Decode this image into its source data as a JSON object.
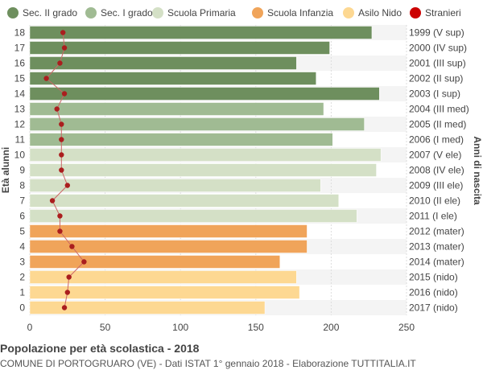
{
  "chart_data": {
    "type": "bar",
    "orientation": "horizontal",
    "ylabel": "Età alunni",
    "ylabel_right": "Anni di nascita",
    "xlim": [
      0,
      250
    ],
    "x_ticks": [
      0,
      50,
      100,
      150,
      200,
      250
    ],
    "grid": true,
    "legend_position": "top",
    "legend": [
      {
        "name": "Sec. II grado",
        "color": "#6e8f5e"
      },
      {
        "name": "Sec. I grado",
        "color": "#a0bb93"
      },
      {
        "name": "Scuola Primaria",
        "color": "#d4e0c6"
      },
      {
        "name": "Scuola Infanzia",
        "color": "#f0a45a"
      },
      {
        "name": "Asilo Nido",
        "color": "#fdd892"
      },
      {
        "name": "Stranieri",
        "color": "#cc0000"
      }
    ],
    "categories": [
      18,
      17,
      16,
      15,
      14,
      13,
      12,
      11,
      10,
      9,
      8,
      7,
      6,
      5,
      4,
      3,
      2,
      1,
      0
    ],
    "birth_years": [
      "1999 (V sup)",
      "2000 (IV sup)",
      "2001 (III sup)",
      "2002 (II sup)",
      "2003 (I sup)",
      "2004 (III med)",
      "2005 (II med)",
      "2006 (I med)",
      "2007 (V ele)",
      "2008 (IV ele)",
      "2009 (III ele)",
      "2010 (II ele)",
      "2011 (I ele)",
      "2012 (mater)",
      "2013 (mater)",
      "2014 (mater)",
      "2015 (nido)",
      "2016 (nido)",
      "2017 (nido)"
    ],
    "values": [
      227,
      199,
      177,
      190,
      232,
      195,
      222,
      201,
      233,
      230,
      193,
      205,
      217,
      184,
      184,
      166,
      177,
      179,
      156
    ],
    "groups": [
      0,
      0,
      0,
      0,
      0,
      1,
      1,
      1,
      2,
      2,
      2,
      2,
      2,
      3,
      3,
      3,
      4,
      4,
      4
    ],
    "stranieri": [
      22,
      23,
      20,
      11,
      23,
      18,
      21,
      21,
      21,
      21,
      25,
      15,
      20,
      20,
      28,
      36,
      26,
      25,
      23
    ]
  },
  "footer": {
    "title": "Popolazione per età scolastica - 2018",
    "subtitle": "COMUNE DI PORTOGRUARO (VE) - Dati ISTAT 1° gennaio 2018 - Elaborazione TUTTITALIA.IT"
  }
}
